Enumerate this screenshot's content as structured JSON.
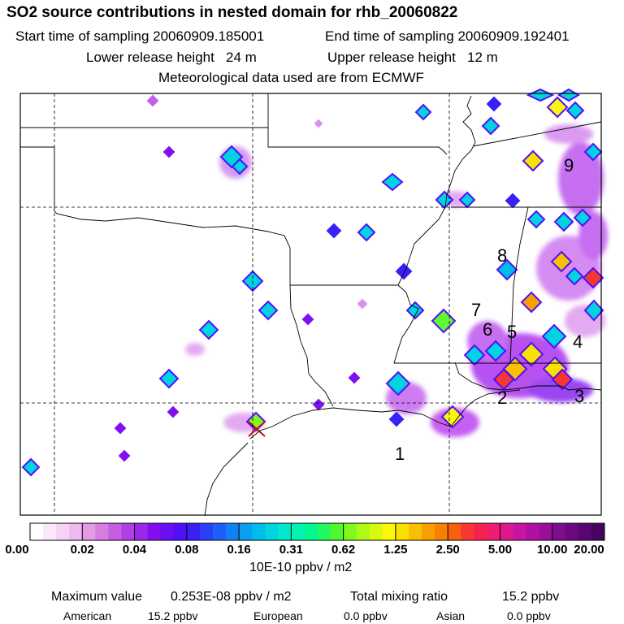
{
  "header": {
    "title": "SO2 source contributions in nested domain for rhb_20060822",
    "start_label": "Start time of sampling 20060909.185001",
    "end_label": "End time of sampling 20060909.192401",
    "lower_label": "Lower release height   24 m",
    "upper_label": "Upper release height   12 m",
    "met_label": "Meteorological data used are from ECMWF"
  },
  "map": {
    "source_labels": [
      "1",
      "2",
      "3",
      "4",
      "5",
      "6",
      "7",
      "8",
      "9"
    ],
    "receptor_marker": "X"
  },
  "colorbar": {
    "ticks": [
      "0.00",
      "0.02",
      "0.04",
      "0.08",
      "0.16",
      "0.31",
      "0.62",
      "1.25",
      "2.50",
      "5.00",
      "10.00",
      "20.00"
    ],
    "colors": [
      "#ffffff",
      "#fbe8fb",
      "#f6d2f6",
      "#efb8ef",
      "#e49ae6",
      "#d77ddd",
      "#c55ee0",
      "#b03fe6",
      "#9a28ea",
      "#8010f0",
      "#6a0ef4",
      "#5010f8",
      "#3a20f8",
      "#2a40f8",
      "#1c60f8",
      "#1080f8",
      "#08a0f0",
      "#00bce8",
      "#00d4e0",
      "#00e8cc",
      "#00f4b0",
      "#00f890",
      "#20f860",
      "#50f830",
      "#80f820",
      "#b0f818",
      "#d8f810",
      "#f8f808",
      "#f8e000",
      "#f8c000",
      "#f8a000",
      "#f88000",
      "#f86010",
      "#f83830",
      "#f82050",
      "#f01c70",
      "#e01890",
      "#c814a0",
      "#b010a0",
      "#98109a",
      "#800c90",
      "#6c0880",
      "#580670",
      "#440460"
    ],
    "unit": "10E-10 ppbv / m2"
  },
  "stats": {
    "max_label": "Maximum value",
    "max_value": "0.253E-08 ppbv / m2",
    "total_label": "Total mixing ratio",
    "total_value": "15.2 ppbv",
    "american_label": "American",
    "american_value": "15.2 ppbv",
    "european_label": "European",
    "european_value": "0.0 ppbv",
    "asian_label": "Asian",
    "asian_value": "0.0 ppbv"
  }
}
